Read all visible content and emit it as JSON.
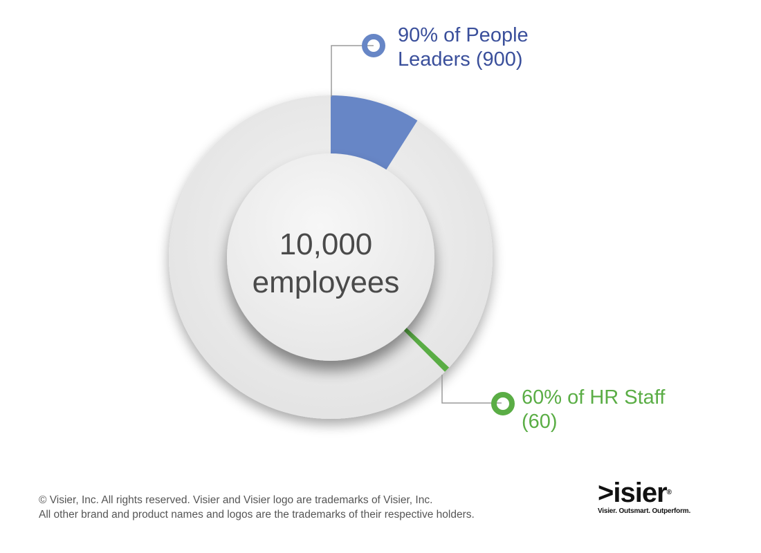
{
  "chart_data": {
    "type": "pie",
    "total_label": "10,000",
    "total_sublabel": "employees",
    "total": 10000,
    "segments": [
      {
        "label": "90% of People Leaders (900)",
        "value": 900,
        "color": "#6786c6"
      },
      {
        "label": "60% of HR Staff (60)",
        "value": 60,
        "color": "#5aad45"
      }
    ]
  },
  "callouts": {
    "leaders": {
      "line1": "90% of People",
      "line2": "Leaders (900)",
      "color": "#3a4f9b"
    },
    "hr": {
      "line1": "60% of HR Staff",
      "line2": "(60)",
      "color": "#5aad45"
    }
  },
  "footer": {
    "line1": "© Visier, Inc. All rights reserved. Visier and Visier logo are trademarks of Visier, Inc.",
    "line2": "All other brand and product names and logos are the trademarks of their respective holders."
  },
  "logo": {
    "wordmark": ">isier",
    "registered": "®",
    "tagline": "Visier. Outsmart. Outperform."
  }
}
